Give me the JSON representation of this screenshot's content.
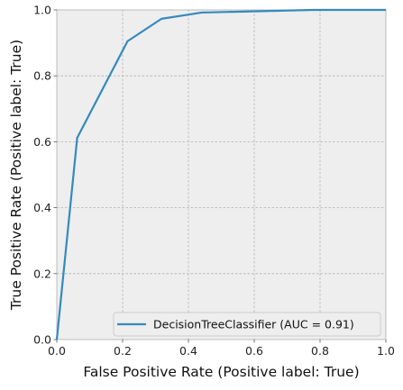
{
  "chart_data": {
    "type": "line",
    "title": "",
    "xlabel": "False Positive Rate (Positive label: True)",
    "ylabel": "True Positive Rate (Positive label: True)",
    "xlim": [
      0,
      1
    ],
    "ylim": [
      0,
      1
    ],
    "xticks": [
      "0.0",
      "0.2",
      "0.4",
      "0.6",
      "0.8",
      "1.0"
    ],
    "yticks": [
      "0.0",
      "0.2",
      "0.4",
      "0.6",
      "0.8",
      "1.0"
    ],
    "grid": true,
    "legend_position": "lower-right",
    "series": [
      {
        "name": "DecisionTreeClassifier (AUC = 0.91)",
        "color": "#348abd",
        "x": [
          0.0,
          0.062,
          0.215,
          0.318,
          0.44,
          0.78,
          1.0
        ],
        "y": [
          0.0,
          0.612,
          0.905,
          0.973,
          0.992,
          1.0,
          1.0
        ]
      }
    ],
    "colors": {
      "plot_background": "#eeeeee",
      "grid": "#b2b2b2",
      "frame": "#bcbcbc"
    }
  }
}
